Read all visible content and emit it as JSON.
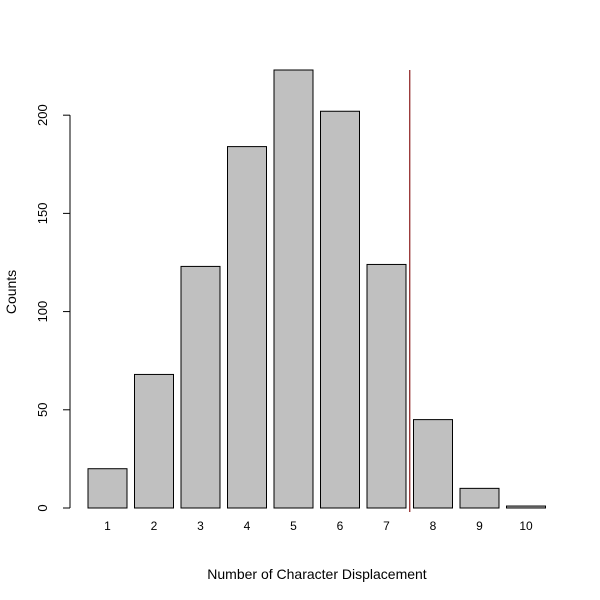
{
  "chart_data": {
    "type": "bar",
    "categories": [
      "1",
      "2",
      "3",
      "4",
      "5",
      "6",
      "7",
      "8",
      "9",
      "10"
    ],
    "values": [
      20,
      68,
      123,
      184,
      223,
      202,
      124,
      45,
      10,
      1
    ],
    "title": "",
    "xlabel": "Number of Character Displacement",
    "ylabel": "Counts",
    "ylim": [
      0,
      223
    ],
    "yticks": [
      0,
      50,
      100,
      150,
      200
    ],
    "grid": false,
    "bar_color": "#c0c0c0",
    "reference_line": {
      "x_between_categories": [
        "7",
        "8"
      ],
      "color": "#8b1a1a"
    }
  }
}
